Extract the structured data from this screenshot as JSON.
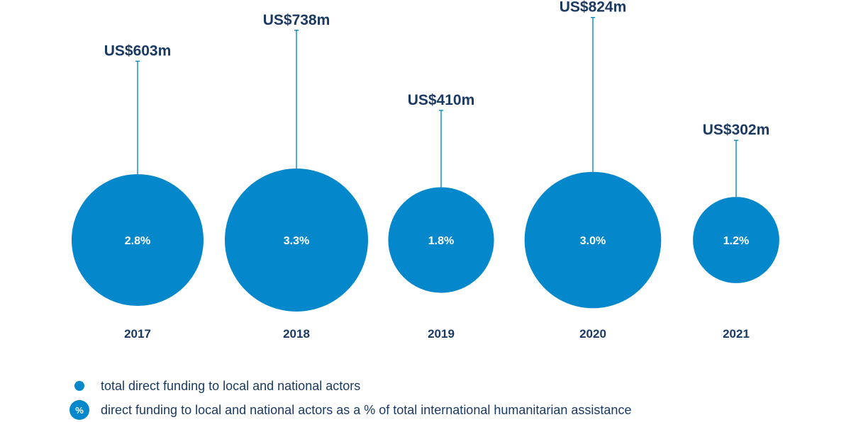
{
  "chart_data": {
    "type": "bubble",
    "categories": [
      "2017",
      "2018",
      "2019",
      "2020",
      "2021"
    ],
    "series": [
      {
        "name": "total direct funding to local and national actors",
        "labels": [
          "US$603m",
          "US$738m",
          "US$410m",
          "US$824m",
          "US$302m"
        ],
        "values": [
          603,
          738,
          410,
          824,
          302
        ],
        "unit": "US$ million"
      },
      {
        "name": "direct funding to local and national actors as a % of total international humanitarian assistance",
        "labels": [
          "2.8%",
          "3.3%",
          "1.8%",
          "3.0%",
          "1.2%"
        ],
        "values": [
          2.8,
          3.3,
          1.8,
          3.0,
          1.2
        ],
        "unit": "%"
      }
    ],
    "colors": {
      "bubble": "#0588cb",
      "text": "#1b3a63",
      "bubble_text": "#ffffff"
    }
  },
  "legend": {
    "items": [
      {
        "marker_text": "",
        "label": "total direct funding to local and national actors"
      },
      {
        "marker_text": "%",
        "label": "direct funding to local and national actors as a % of total international humanitarian assistance"
      }
    ]
  }
}
